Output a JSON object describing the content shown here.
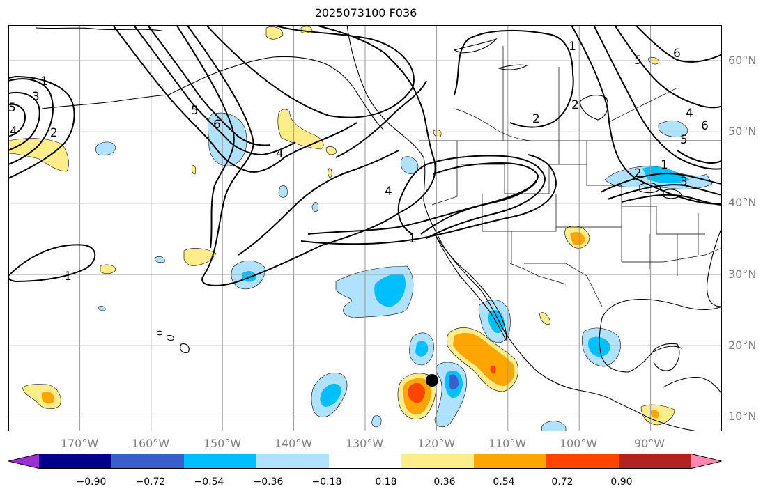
{
  "title": "2025073100 F036",
  "map": {
    "lon_range": [
      -180,
      -80
    ],
    "lat_range": [
      8,
      65
    ],
    "lat_labels": [
      "60°N",
      "50°N",
      "40°N",
      "30°N",
      "20°N",
      "10°N"
    ],
    "lat_values": [
      60,
      50,
      40,
      30,
      20,
      10
    ],
    "lon_labels": [
      "170°W",
      "160°W",
      "150°W",
      "140°W",
      "130°W",
      "120°W",
      "110°W",
      "100°W",
      "90°W"
    ],
    "lon_values": [
      -170,
      -160,
      -150,
      -140,
      -130,
      -120,
      -110,
      -100,
      -90
    ],
    "contour_labels": [
      "1",
      "3",
      "5",
      "4",
      "2",
      "6",
      "5",
      "4",
      "1",
      "1",
      "2",
      "4",
      "2",
      "1",
      "5",
      "6",
      "4",
      "6",
      "5",
      "2",
      "3",
      "1"
    ],
    "grid": true,
    "colors": {
      "coast": "#000000",
      "grid": "#9a9a9a",
      "contour": "#000000"
    }
  },
  "colorbar": {
    "ticks": [
      "−0.90",
      "−0.72",
      "−0.54",
      "−0.36",
      "−0.18",
      "0.18",
      "0.36",
      "0.54",
      "0.72",
      "0.90"
    ],
    "colors": [
      "#9b30d0",
      "#00008b",
      "#3a5fcd",
      "#00bfff",
      "#b0e2ff",
      "#ffffff",
      "#ffec8b",
      "#ffa500",
      "#ff4500",
      "#b22222",
      "#ff88b0"
    ]
  }
}
